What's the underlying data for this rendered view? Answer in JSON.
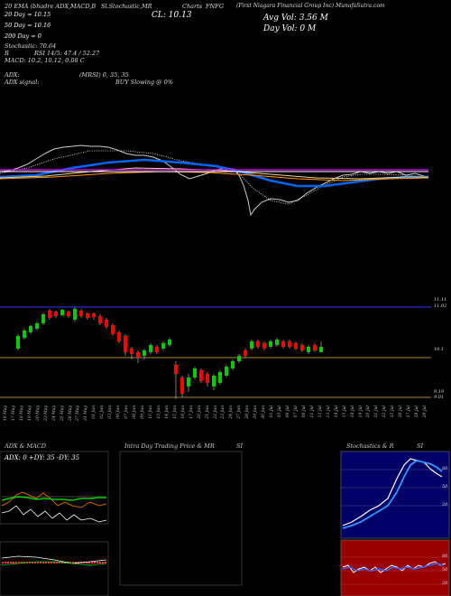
{
  "header": {
    "top_left_line": "20 EMA (bhadre ADX,MACD,B",
    "top_mid1": "Sl.Stochastic,MR",
    "top_mid2": "Charts",
    "ticker": "FNFG",
    "company": "(First Niagara Financial Group Inc) MunafaSutra.com",
    "ma20": "20 Day = 10.15",
    "ma50": "50 Day = 10.16",
    "ma200": "200 Day = 0",
    "close": "CL: 10.13",
    "avg_vol": "Avg Vol: 3.56 M",
    "day_vol": "Day Vol: 0 M",
    "adx_line": "Stochastic: 70.64",
    "rsi_line": "RSI 14/5: 47.4 / 52.27",
    "macd_line": "MACD: 10.2, 10.12, 0.08 C",
    "r_label": "R",
    "adx_label": "ADX:",
    "adx_signal": "ADX signal:",
    "mrsi": "(MRSI) 0, 35, 35",
    "buy_signal": "BUY Slowing @ 0%"
  },
  "candle_chart": {
    "price_labels": [
      "11.11",
      "11.02",
      "10.1",
      "9.19",
      "9.01"
    ],
    "dates": [
      "16 May",
      "17 May",
      "18 May",
      "19 May",
      "20 May",
      "23 May",
      "24 May",
      "25 May",
      "26 May",
      "27 May",
      "31 May",
      "01 Jun",
      "02 Jun",
      "03 Jun",
      "06 Jun",
      "07 Jun",
      "08 Jun",
      "09 Jun",
      "10 Jun",
      "13 Jun",
      "14 Jun",
      "15 Jun",
      "16 Jun",
      "17 Jun",
      "20 Jun",
      "21 Jun",
      "22 Jun",
      "23 Jun",
      "24 Jun",
      "27 Jun",
      "28 Jun",
      "29 Jun",
      "30 Jun",
      "01 Jul",
      "05 Jul",
      "06 Jul",
      "07 Jul",
      "08 Jul",
      "11 Jul",
      "12 Jul",
      "13 Jul",
      "14 Jul",
      "15 Jul",
      "18 Jul",
      "19 Jul",
      "20 Jul",
      "21 Jul",
      "22 Jul",
      "25 Jul",
      "26 Jul",
      "27 Jul",
      "28 Jul",
      "29 Jul"
    ],
    "colors": {
      "up": "#00cc00",
      "down": "#ff0000"
    }
  },
  "panels": {
    "adx_title": "ADX & MACD",
    "adx_values": "ADX: 0  +DY: 35 -DY: 35",
    "intraday_title": "Intra Day Trading Price & MR",
    "intraday_si": "SI",
    "stoch_title": "Stochastics & R",
    "stoch_si": "SI",
    "stoch_levels": [
      "80",
      "50",
      "20"
    ],
    "rsi_levels": [
      "80",
      "50",
      "20"
    ]
  }
}
